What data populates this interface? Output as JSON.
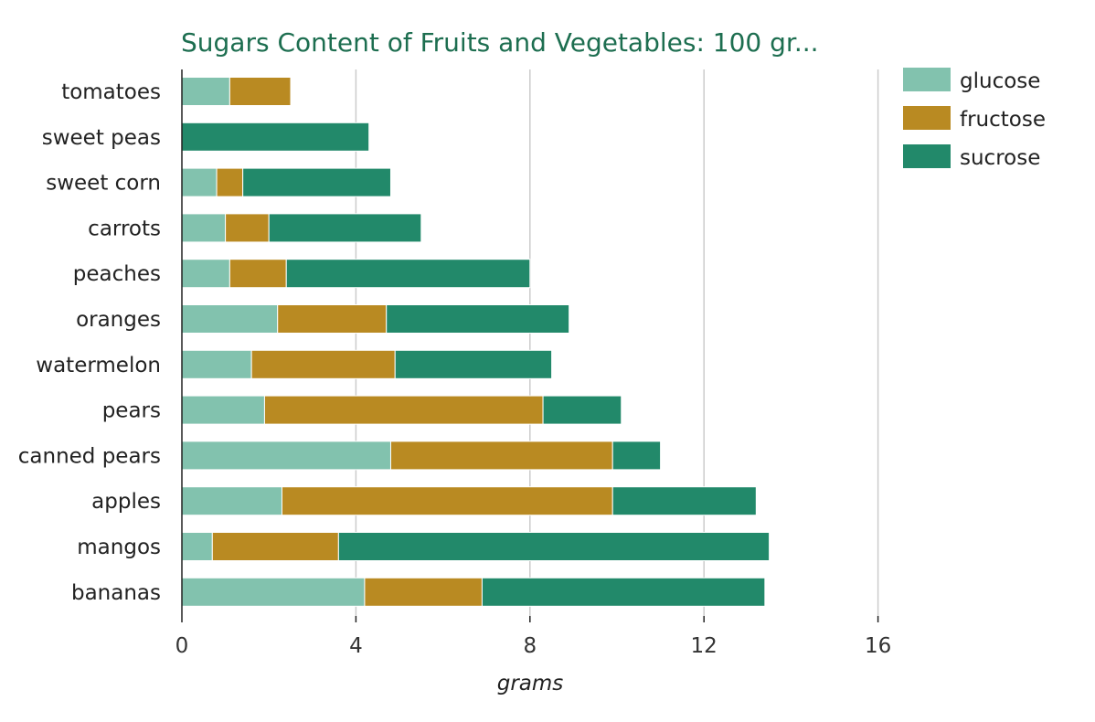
{
  "chart_data": {
    "type": "bar",
    "orientation": "horizontal",
    "stacked": true,
    "title": "Sugars Content of Fruits and Vegetables: 100 gr...",
    "xlabel": "grams",
    "ylabel": "",
    "xlim": [
      0,
      16
    ],
    "xticks": [
      0,
      4,
      8,
      12,
      16
    ],
    "grid": true,
    "legend_position": "top-right",
    "categories": [
      "tomatoes",
      "sweet peas",
      "sweet corn",
      "carrots",
      "peaches",
      "oranges",
      "watermelon",
      "pears",
      "canned pears",
      "apples",
      "mangos",
      "bananas"
    ],
    "series": [
      {
        "name": "glucose",
        "color": "#82c2ae",
        "values": [
          1.1,
          0,
          0.8,
          1.0,
          1.1,
          2.2,
          1.6,
          1.9,
          4.8,
          2.3,
          0.7,
          4.2
        ]
      },
      {
        "name": "fructose",
        "color": "#b98a22",
        "values": [
          1.4,
          0,
          0.6,
          1.0,
          1.3,
          2.5,
          3.3,
          6.4,
          5.1,
          7.6,
          2.9,
          2.7
        ]
      },
      {
        "name": "sucrose",
        "color": "#22896a",
        "values": [
          0,
          4.3,
          3.4,
          3.5,
          5.6,
          4.2,
          3.6,
          1.8,
          1.1,
          3.3,
          9.9,
          6.5
        ]
      }
    ]
  }
}
